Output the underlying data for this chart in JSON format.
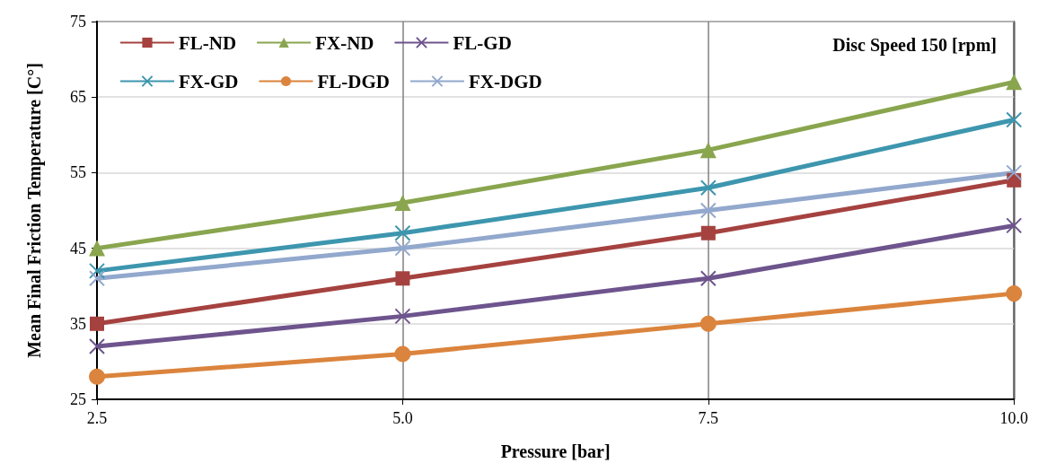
{
  "chart_data": {
    "type": "line",
    "xlabel": "Pressure [bar]",
    "ylabel": "Mean Final Friction Temperature [C°]",
    "annotations": [
      "Disc Speed 150 [rpm]"
    ],
    "x": [
      2.5,
      5,
      7.5,
      10
    ],
    "xlim": [
      2.5,
      10
    ],
    "xticks": [
      2.5,
      {
        "value": 5,
        "label": "5.0"
      },
      7.5,
      {
        "value": 10,
        "label": "10.0"
      }
    ],
    "ylim": [
      25,
      75
    ],
    "yticks": [
      25,
      35,
      45,
      55,
      65,
      75
    ],
    "grid": true,
    "legend": "top left",
    "line_style": "solid",
    "series": [
      {
        "name": "FL-ND",
        "color": "#a5423f",
        "marker": "square",
        "values": [
          35,
          41,
          47,
          54
        ]
      },
      {
        "name": "FX-ND",
        "color": "#89a54e",
        "marker": "triangle",
        "values": [
          45,
          51,
          58,
          67
        ]
      },
      {
        "name": "FL-GD",
        "color": "#6e548d",
        "marker": "cross",
        "values": [
          32,
          36,
          41,
          48
        ]
      },
      {
        "name": "FX-GD",
        "color": "#3d96ae",
        "marker": "cross",
        "values": [
          42,
          47,
          53,
          62
        ]
      },
      {
        "name": "FL-DGD",
        "color": "#db843d",
        "marker": "circle",
        "values": [
          28,
          31,
          35,
          39
        ]
      },
      {
        "name": "FX-DGD",
        "color": "#92a8cd",
        "marker": "cross",
        "values": [
          41,
          45,
          50,
          55
        ]
      }
    ]
  }
}
